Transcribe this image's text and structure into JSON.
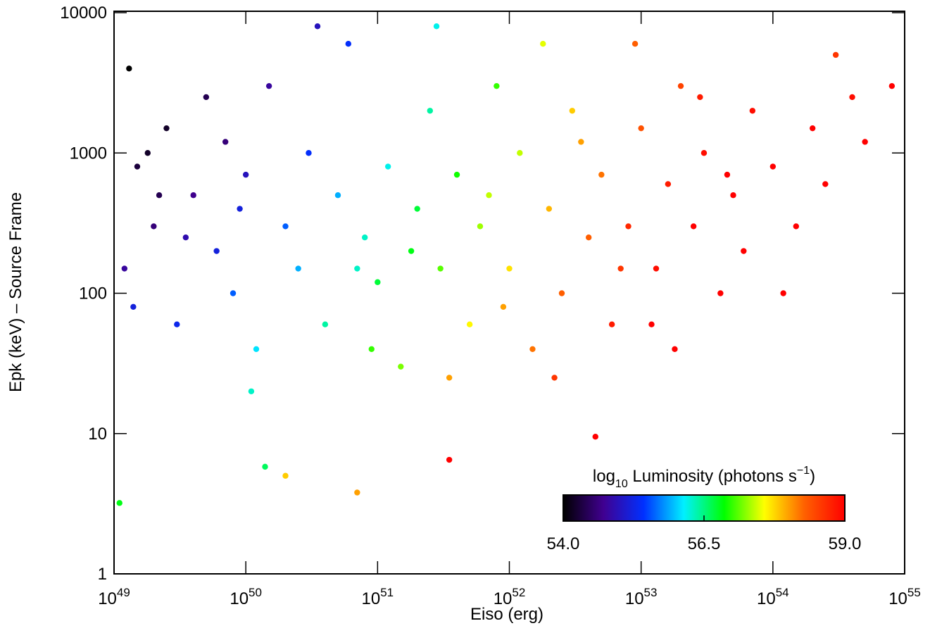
{
  "chart_data": {
    "type": "scatter",
    "x_label": "Eiso (erg)",
    "y_label": "Epk (keV) – Source Frame",
    "xlim": [
      1e+49,
      1e+55
    ],
    "ylim": [
      1,
      10000
    ],
    "xscale": "log",
    "yscale": "log",
    "xticks": [
      {
        "value": 1e+49,
        "label": "10^49"
      },
      {
        "value": 1e+50,
        "label": "10^50"
      },
      {
        "value": 1e+51,
        "label": "10^51"
      },
      {
        "value": 1e+52,
        "label": "10^52"
      },
      {
        "value": 1e+53,
        "label": "10^53"
      },
      {
        "value": 1e+54,
        "label": "10^54"
      },
      {
        "value": 1e+55,
        "label": "10^55"
      }
    ],
    "yticks": [
      1,
      10,
      100,
      1000,
      10000
    ],
    "x": [
      1.3e+49,
      1.5e+49,
      2e+49,
      1.2e+49,
      2.5e+49,
      3e+49,
      4e+49,
      5e+49,
      6e+49,
      8e+49,
      1e+50,
      1.2e+50,
      1.5e+50,
      2e+50,
      2.5e+50,
      3e+50,
      4e+50,
      5e+50,
      6e+50,
      8e+50,
      1e+51,
      1.2e+51,
      1.5e+51,
      2e+51,
      2.5e+51,
      3e+51,
      4e+51,
      5e+51,
      6e+51,
      8e+51,
      1e+52,
      1.2e+52,
      1.5e+52,
      2e+52,
      2.5e+52,
      3e+52,
      4e+52,
      5e+52,
      6e+52,
      8e+52,
      1e+53,
      1.3e+53,
      1.6e+53,
      2e+53,
      2.5e+53,
      3e+53,
      4e+53,
      5e+53,
      7e+53,
      1e+54,
      1.5e+54,
      2e+54,
      3e+54,
      5e+54,
      8e+54,
      1.1e+49,
      2e+50,
      7e+50,
      4.5e+52,
      3.5e+51,
      1.4e+50,
      1.8e+49,
      2.2e+49,
      3.5e+49,
      1.4e+49,
      7e+49,
      9e+49,
      1.1e+50,
      3.5e+50,
      7e+50,
      9e+50,
      1.8e+51,
      2.8e+51,
      3.5e+51,
      7e+51,
      9e+51,
      1.8e+52,
      2.2e+52,
      3.5e+52,
      7e+52,
      9e+52,
      1.2e+53,
      1.8e+53,
      2.8e+53,
      4.5e+53,
      6e+53,
      1.2e+54,
      2.5e+54,
      4e+54
    ],
    "values": [
      4000,
      800,
      300,
      150,
      1500,
      60,
      500,
      2500,
      200,
      100,
      700,
      40,
      3000,
      300,
      150,
      1000,
      60,
      500,
      6000,
      250,
      120,
      800,
      30,
      400,
      2000,
      150,
      700,
      60,
      300,
      3000,
      150,
      1000,
      40,
      400,
      100,
      2000,
      250,
      700,
      60,
      300,
      1500,
      150,
      600,
      3000,
      300,
      1000,
      100,
      500,
      2000,
      800,
      300,
      1500,
      5000,
      1200,
      3000,
      3.2,
      5,
      3.8,
      9.5,
      6.5,
      5.8,
      1000,
      500,
      250,
      80,
      1200,
      400,
      20,
      8000,
      150,
      40,
      200,
      8000,
      25,
      500,
      80,
      6000,
      25,
      1200,
      150,
      6000,
      60,
      40,
      2500,
      700,
      200,
      100,
      600,
      2500
    ],
    "color_values": [
      54.0,
      54.3,
      54.6,
      54.8,
      54.2,
      55.3,
      54.7,
      54.4,
      55.2,
      55.6,
      55.0,
      56.1,
      54.8,
      55.6,
      55.9,
      55.4,
      56.4,
      55.9,
      55.4,
      56.3,
      56.7,
      56.2,
      57.2,
      56.7,
      56.4,
      57.1,
      56.9,
      57.6,
      57.3,
      57.0,
      57.7,
      57.4,
      58.2,
      57.9,
      58.3,
      57.8,
      58.3,
      58.2,
      58.8,
      58.7,
      58.4,
      58.9,
      58.8,
      58.5,
      59.0,
      58.9,
      59.0,
      59.0,
      58.9,
      59.0,
      59.0,
      59.0,
      58.6,
      59.0,
      59.0,
      56.8,
      57.8,
      58.0,
      59.0,
      59.0,
      56.6,
      54.2,
      54.4,
      54.9,
      55.2,
      54.6,
      55.2,
      56.3,
      55.0,
      56.3,
      57.0,
      56.8,
      56.2,
      58.0,
      57.4,
      58.0,
      57.5,
      58.6,
      58.0,
      58.6,
      58.3,
      59.0,
      59.0,
      58.8,
      59.0,
      59.0,
      59.0,
      59.0,
      58.9
    ],
    "colorbar": {
      "title": [
        "log",
        "10",
        " Luminosity (photons s",
        "−1",
        ")"
      ],
      "lim": [
        54.0,
        59.0
      ],
      "ticks": [
        {
          "value": 54.0,
          "label": "54.0"
        },
        {
          "value": 56.5,
          "label": "56.5"
        },
        {
          "value": 59.0,
          "label": "59.0"
        }
      ],
      "colormap": [
        "#000000",
        "#400090",
        "#0030ff",
        "#00f0ff",
        "#00ff00",
        "#ffff00",
        "#ff6000",
        "#ff0000"
      ]
    }
  }
}
